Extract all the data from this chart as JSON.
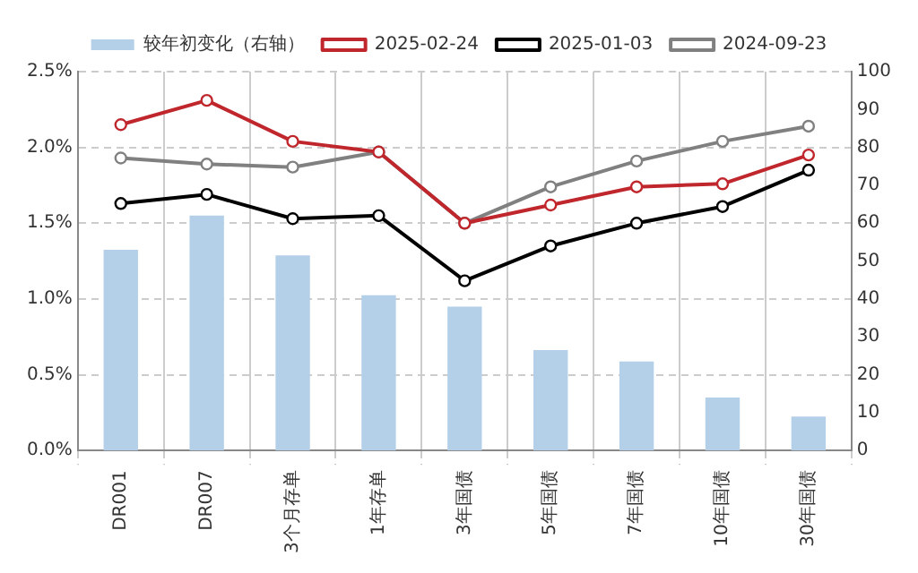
{
  "chart_data": {
    "type": "bar",
    "categories": [
      "DR001",
      "DR007",
      "3个月存单",
      "1年存单",
      "3年国债",
      "5年国债",
      "7年国债",
      "10年国债",
      "30年国债"
    ],
    "series": [
      {
        "name": "较年初变化（右轴）",
        "axis": "y2",
        "color": "#b4cfe8",
        "values": [
          53,
          62,
          51.5,
          41,
          38,
          26.5,
          23.5,
          14,
          9
        ]
      },
      {
        "name": "2025-02-24",
        "type": "line",
        "color": "#c0272d",
        "values": [
          2.15,
          2.31,
          2.04,
          1.97,
          1.5,
          1.62,
          1.74,
          1.76,
          1.95
        ]
      },
      {
        "name": "2025-01-03",
        "type": "line",
        "color": "#000000",
        "values": [
          1.63,
          1.69,
          1.53,
          1.55,
          1.12,
          1.35,
          1.5,
          1.61,
          1.85
        ]
      },
      {
        "name": "2024-09-23",
        "type": "line",
        "color": "#808080",
        "values": [
          1.93,
          1.89,
          1.87,
          1.97,
          1.5,
          1.74,
          1.91,
          2.04,
          2.14
        ]
      }
    ],
    "ylim": [
      0,
      2.5
    ],
    "yticks": [
      {
        "value": 0,
        "label": "0.0%"
      },
      {
        "value": 0.5,
        "label": "0.5%"
      },
      {
        "value": 1,
        "label": "1.0%"
      },
      {
        "value": 1.5,
        "label": "1.5%"
      },
      {
        "value": 2,
        "label": "2.0%"
      },
      {
        "value": 2.5,
        "label": "2.5%"
      }
    ],
    "y2lim": [
      0,
      100
    ],
    "y2ticks": [
      0,
      10,
      20,
      30,
      40,
      50,
      60,
      70,
      80,
      90,
      100
    ],
    "grid": true,
    "legend": "top",
    "marker": "circle",
    "line_style": "solid"
  }
}
